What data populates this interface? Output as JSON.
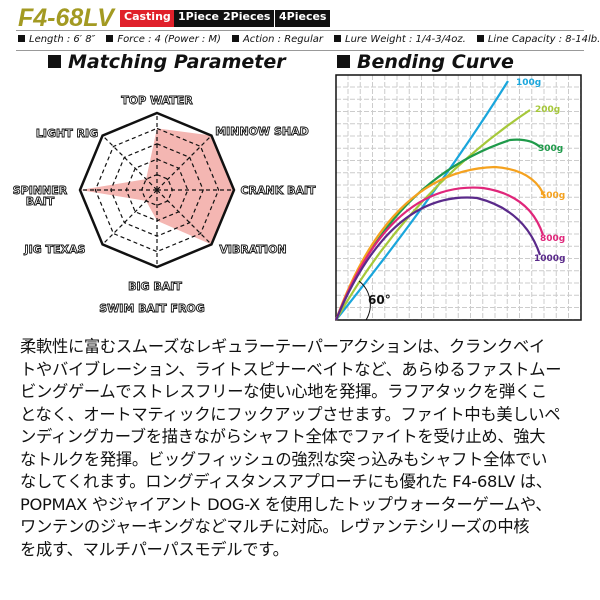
{
  "model": "F4-68LV",
  "tags": [
    {
      "label": "Casting",
      "color": "#e0202a"
    },
    {
      "label": "1Piece"
    },
    {
      "label": "2Pieces"
    },
    {
      "label": "4Pieces"
    }
  ],
  "specs": [
    "Length : 6′ 8″",
    "Force : 4 (Power : M)",
    "Action : Regular",
    "Lure Weight : 1/4-3/4oz.",
    "Line Capacity : 8-14lb."
  ],
  "matching": {
    "title": "Matching Parameter",
    "scale_max": 5,
    "fill_color": "#f4b6b2",
    "axes": [
      {
        "label": "TOP WATER",
        "value": 4
      },
      {
        "label": "MINNOW SHAD",
        "value": 5
      },
      {
        "label": "CRANK BAIT",
        "value": 5
      },
      {
        "label": "VIBRATION",
        "value": 5
      },
      {
        "label": "BIG BAIT",
        "value": 2
      },
      {
        "label": "JIG TEXAS",
        "value": 1
      },
      {
        "label": "SPINNER BAIT",
        "value": 5
      },
      {
        "label": "LIGHT RIG",
        "value": 1
      }
    ],
    "extra_label": "SWIM BAIT  FROG"
  },
  "bending": {
    "title": "Bending Curve",
    "angle": "60°",
    "loads": [
      {
        "label": "100g",
        "color": "#1aa6dc"
      },
      {
        "label": "200g",
        "color": "#a6c83a"
      },
      {
        "label": "300g",
        "color": "#1f9a4a"
      },
      {
        "label": "500g",
        "color": "#f5a21f"
      },
      {
        "label": "800g",
        "color": "#e0267a"
      },
      {
        "label": "1000g",
        "color": "#5a2a8a"
      }
    ]
  },
  "description": [
    "柔軟性に富むスムーズなレギュラーテーパーアクションは、クランクベイ",
    "トやバイブレーション、ライトスピナーベイトなど、あらゆるファストムー",
    "ビングゲームでストレスフリーな使い心地を発揮。ラフアタックを弾くこ",
    "となく、オートマティックにフックアップさせます。ファイト中も美しいペ",
    "ンディングカーブを描きながらシャフト全体でファイトを受け止め、強大",
    "なトルクを発揮。ビッグフィッシュの強烈な突っ込みもシャフト全体でい",
    "なしてくれます。ロングディスタンスアプローチにも優れた F4-68LV は、",
    "POPMAX やジャイアント DOG-X を使用したトップウォーターゲームや、",
    "ワンテンのジャーキングなどマルチに対応。レヴァンテシリーズの中核",
    "を成す、マルチパーパスモデルです。"
  ]
}
